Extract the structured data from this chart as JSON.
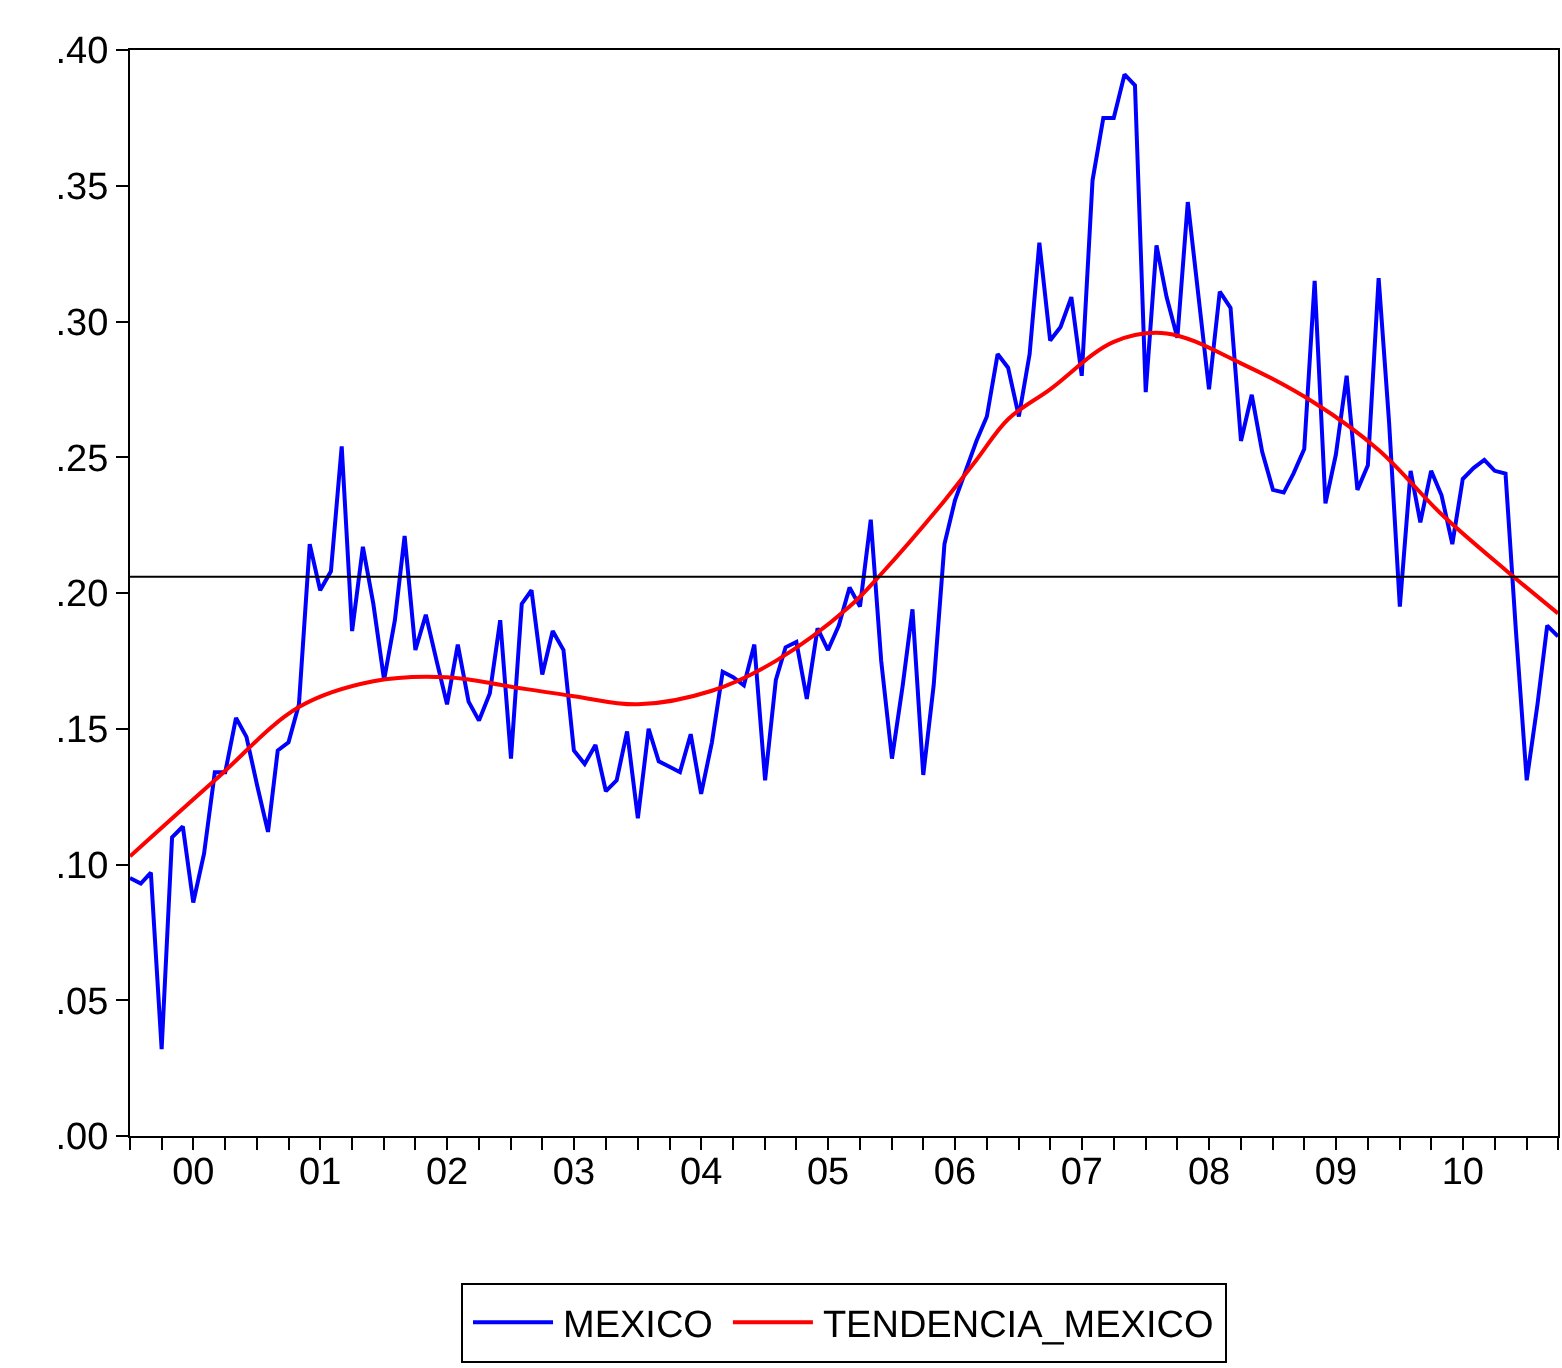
{
  "chart_data": {
    "type": "line",
    "xlim": [
      "2000-01",
      "2011-04"
    ],
    "xticks": [
      {
        "value": "2000-07",
        "label": "00"
      },
      {
        "value": "2001-07",
        "label": "01"
      },
      {
        "value": "2002-07",
        "label": "02"
      },
      {
        "value": "2003-07",
        "label": "03"
      },
      {
        "value": "2004-07",
        "label": "04"
      },
      {
        "value": "2005-07",
        "label": "05"
      },
      {
        "value": "2006-07",
        "label": "06"
      },
      {
        "value": "2007-07",
        "label": "07"
      },
      {
        "value": "2008-07",
        "label": "08"
      },
      {
        "value": "2009-07",
        "label": "09"
      },
      {
        "value": "2010-07",
        "label": "10"
      }
    ],
    "ylim": [
      0,
      0.4
    ],
    "yticks": [
      {
        "value": 0,
        "label": ".00"
      },
      {
        "value": 0.05,
        "label": ".05"
      },
      {
        "value": 0.1,
        "label": ".10"
      },
      {
        "value": 0.15,
        "label": ".15"
      },
      {
        "value": 0.2,
        "label": ".20"
      },
      {
        "value": 0.25,
        "label": ".25"
      },
      {
        "value": 0.3,
        "label": ".30"
      },
      {
        "value": 0.35,
        "label": ".35"
      },
      {
        "value": 0.4,
        "label": ".40"
      }
    ],
    "legend": "bottom",
    "marker": "none",
    "line_style": "solid",
    "ref_lines": [
      {
        "axis": "y",
        "value": 0.206,
        "label": null,
        "color": "#000000"
      }
    ],
    "series": [
      {
        "name": "MEXICO",
        "color": "#0000ff",
        "x": [
          "2000-01",
          "2000-02",
          "2000-03",
          "2000-04",
          "2000-05",
          "2000-06",
          "2000-07",
          "2000-08",
          "2000-09",
          "2000-10",
          "2000-11",
          "2000-12",
          "2001-01",
          "2001-02",
          "2001-03",
          "2001-04",
          "2001-05",
          "2001-06",
          "2001-07",
          "2001-08",
          "2001-09",
          "2001-10",
          "2001-11",
          "2001-12",
          "2002-01",
          "2002-02",
          "2002-03",
          "2002-04",
          "2002-05",
          "2002-06",
          "2002-07",
          "2002-08",
          "2002-09",
          "2002-10",
          "2002-11",
          "2002-12",
          "2003-01",
          "2003-02",
          "2003-03",
          "2003-04",
          "2003-05",
          "2003-06",
          "2003-07",
          "2003-08",
          "2003-09",
          "2003-10",
          "2003-11",
          "2003-12",
          "2004-01",
          "2004-02",
          "2004-03",
          "2004-04",
          "2004-05",
          "2004-06",
          "2004-07",
          "2004-08",
          "2004-09",
          "2004-10",
          "2004-11",
          "2004-12",
          "2005-01",
          "2005-02",
          "2005-03",
          "2005-04",
          "2005-05",
          "2005-06",
          "2005-07",
          "2005-08",
          "2005-09",
          "2005-10",
          "2005-11",
          "2005-12",
          "2006-01",
          "2006-02",
          "2006-03",
          "2006-04",
          "2006-05",
          "2006-06",
          "2006-07",
          "2006-08",
          "2006-09",
          "2006-10",
          "2006-11",
          "2006-12",
          "2007-01",
          "2007-02",
          "2007-03",
          "2007-04",
          "2007-05",
          "2007-06",
          "2007-07",
          "2007-08",
          "2007-09",
          "2007-10",
          "2007-11",
          "2007-12",
          "2008-01",
          "2008-02",
          "2008-03",
          "2008-04",
          "2008-05",
          "2008-06",
          "2008-07",
          "2008-08",
          "2008-09",
          "2008-10",
          "2008-11",
          "2008-12",
          "2009-01",
          "2009-02",
          "2009-03",
          "2009-04",
          "2009-05",
          "2009-06",
          "2009-07",
          "2009-08",
          "2009-09",
          "2009-10",
          "2009-11",
          "2009-12",
          "2010-01",
          "2010-02",
          "2010-03",
          "2010-04",
          "2010-05",
          "2010-06",
          "2010-07",
          "2010-08",
          "2010-09",
          "2010-10",
          "2010-11",
          "2010-12",
          "2011-01",
          "2011-02",
          "2011-03",
          "2011-04"
        ],
        "values": [
          0.095,
          0.093,
          0.097,
          0.032,
          0.11,
          0.114,
          0.086,
          0.104,
          0.134,
          0.134,
          0.154,
          0.147,
          0.129,
          0.112,
          0.142,
          0.145,
          0.159,
          0.218,
          0.201,
          0.208,
          0.254,
          0.186,
          0.217,
          0.196,
          0.168,
          0.19,
          0.221,
          0.179,
          0.192,
          0.175,
          0.159,
          0.181,
          0.16,
          0.153,
          0.163,
          0.19,
          0.139,
          0.196,
          0.201,
          0.17,
          0.186,
          0.179,
          0.142,
          0.137,
          0.144,
          0.127,
          0.131,
          0.149,
          0.117,
          0.15,
          0.138,
          0.136,
          0.134,
          0.148,
          0.126,
          0.145,
          0.171,
          0.169,
          0.166,
          0.181,
          0.131,
          0.168,
          0.18,
          0.182,
          0.161,
          0.187,
          0.179,
          0.188,
          0.202,
          0.195,
          0.227,
          0.175,
          0.139,
          0.166,
          0.194,
          0.133,
          0.166,
          0.218,
          0.234,
          0.245,
          0.256,
          0.265,
          0.288,
          0.283,
          0.265,
          0.288,
          0.329,
          0.293,
          0.298,
          0.309,
          0.28,
          0.352,
          0.375,
          0.375,
          0.391,
          0.387,
          0.274,
          0.328,
          0.309,
          0.294,
          0.344,
          0.309,
          0.275,
          0.311,
          0.305,
          0.256,
          0.273,
          0.252,
          0.238,
          0.237,
          0.244,
          0.253,
          0.315,
          0.233,
          0.251,
          0.28,
          0.238,
          0.247,
          0.316,
          0.263,
          0.195,
          0.245,
          0.226,
          0.245,
          0.236,
          0.218,
          0.242,
          0.246,
          0.249,
          0.245,
          0.244,
          0.186,
          0.131,
          0.159,
          0.188,
          0.184
        ]
      },
      {
        "name": "TENDENCIA_MEXICO",
        "color": "#ff0000",
        "x": [
          "2000-01",
          "2000-09",
          "2001-05",
          "2001-12",
          "2002-07",
          "2003-01",
          "2003-07",
          "2004-01",
          "2004-08",
          "2005-02",
          "2005-09",
          "2005-12",
          "2006-06",
          "2006-09",
          "2006-12",
          "2007-04",
          "2007-10",
          "2008-03",
          "2008-10",
          "2009-05",
          "2009-11",
          "2010-05",
          "2010-11",
          "2011-04"
        ],
        "values": [
          0.103,
          0.131,
          0.158,
          0.1675,
          0.169,
          0.1655,
          0.162,
          0.159,
          0.164,
          0.175,
          0.195,
          0.207,
          0.234,
          0.249,
          0.264,
          0.275,
          0.2925,
          0.2956,
          0.2846,
          0.27,
          0.2527,
          0.229,
          0.2085,
          0.1925
        ]
      }
    ]
  }
}
